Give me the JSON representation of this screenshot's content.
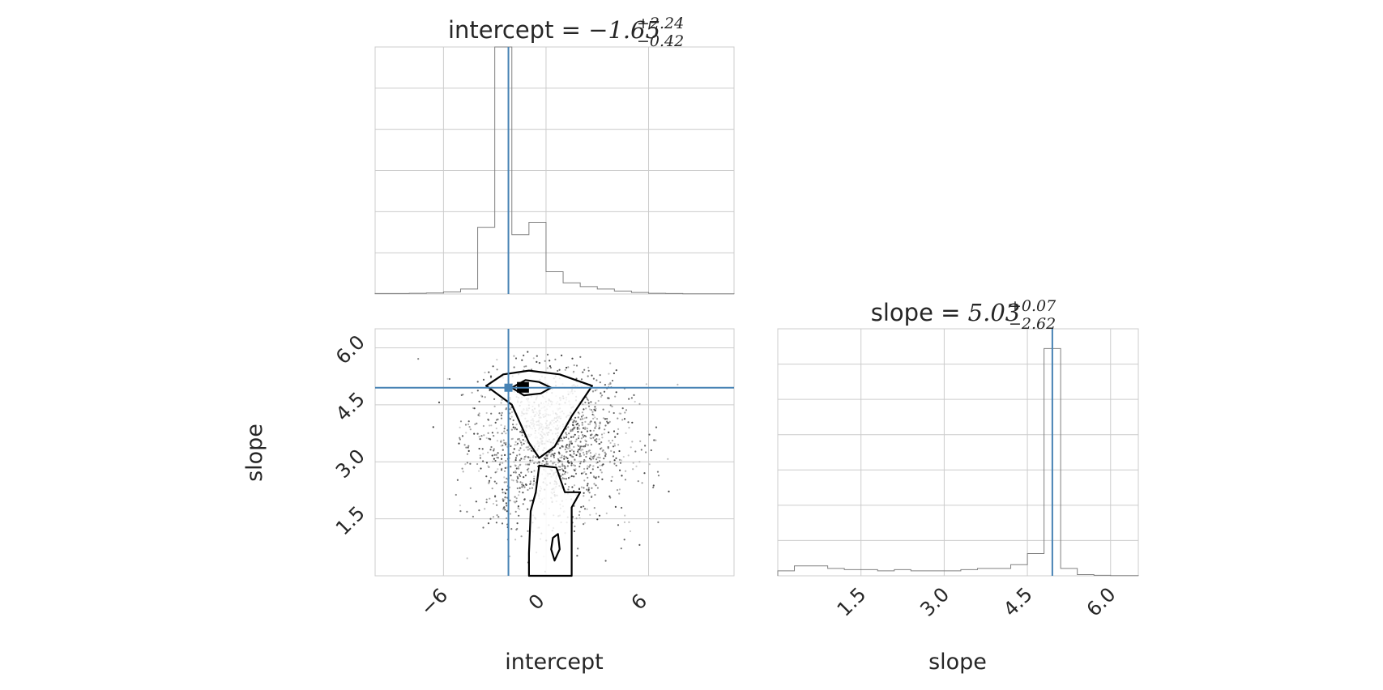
{
  "chart_data": {
    "type": "corner",
    "accent_color": "#4682b4",
    "hist_color": "#808080",
    "grid_color": "#cccccc",
    "grid": true,
    "parameters": [
      "intercept",
      "slope"
    ],
    "truths": {
      "intercept": -2.2,
      "slope": 4.95
    },
    "panels": [
      {
        "id": "hist-intercept",
        "type": "histogram",
        "title": {
          "name": "intercept",
          "eq": " = ",
          "value": "−1.65",
          "upper": "+2.24",
          "lower": "−0.42"
        },
        "xlim": [
          -10,
          11
        ],
        "ylim": [
          0,
          1.0
        ],
        "bins": [
          -10,
          -9,
          -8,
          -7,
          -6,
          -5,
          -4,
          -3,
          -2,
          -1,
          0,
          1,
          2,
          3,
          4,
          5,
          6,
          7,
          8,
          9,
          10,
          11
        ],
        "counts": [
          0.002,
          0.002,
          0.003,
          0.004,
          0.008,
          0.02,
          0.27,
          1.0,
          0.24,
          0.29,
          0.09,
          0.045,
          0.03,
          0.02,
          0.012,
          0.006,
          0.003,
          0.002,
          0.001,
          0.001,
          0.001
        ]
      },
      {
        "id": "hist-slope",
        "type": "histogram",
        "title": {
          "name": "slope",
          "eq": " = ",
          "value": "5.03",
          "upper": "+0.07",
          "lower": "−2.62"
        },
        "xlim": [
          0.0,
          6.5
        ],
        "xticks": [
          "1.5",
          "3.0",
          "4.5",
          "6.0"
        ],
        "xtick_values": [
          1.5,
          3.0,
          4.5,
          6.0
        ],
        "xlabel": "slope",
        "ylim": [
          0,
          1.0
        ],
        "bins": [
          0.0,
          0.3,
          0.6,
          0.9,
          1.2,
          1.5,
          1.8,
          2.1,
          2.4,
          2.7,
          3.0,
          3.3,
          3.6,
          3.9,
          4.2,
          4.5,
          4.8,
          5.1,
          5.4,
          5.7,
          6.0,
          6.3,
          6.5
        ],
        "counts": [
          0.02,
          0.04,
          0.04,
          0.03,
          0.025,
          0.025,
          0.02,
          0.025,
          0.02,
          0.02,
          0.02,
          0.025,
          0.03,
          0.03,
          0.045,
          0.09,
          0.92,
          0.03,
          0.005,
          0.002,
          0.001,
          0.001
        ]
      },
      {
        "id": "scatter-intercept-slope",
        "type": "contour-scatter",
        "xlim": [
          -10,
          11
        ],
        "ylim": [
          0.0,
          6.5
        ],
        "xticks": [
          "−6",
          "0",
          "6"
        ],
        "xtick_values": [
          -6,
          0,
          6
        ],
        "yticks": [
          "1.5",
          "3.0",
          "4.5",
          "6.0"
        ],
        "ytick_values": [
          1.5,
          3.0,
          4.5,
          6.0
        ],
        "xlabel": "intercept",
        "ylabel": "slope",
        "contours": [
          [
            [
              -3.5,
              5.0
            ],
            [
              -2.5,
              5.3
            ],
            [
              -1.0,
              5.4
            ],
            [
              0.8,
              5.3
            ],
            [
              2.7,
              5.0
            ],
            [
              1.5,
              4.2
            ],
            [
              0.5,
              3.4
            ],
            [
              -0.4,
              3.1
            ],
            [
              -1.0,
              3.5
            ],
            [
              -2.0,
              4.5
            ],
            [
              -3.5,
              5.0
            ]
          ],
          [
            [
              -2.0,
              4.95
            ],
            [
              -1.2,
              5.15
            ],
            [
              -0.4,
              5.1
            ],
            [
              0.3,
              4.95
            ],
            [
              -0.3,
              4.8
            ],
            [
              -1.3,
              4.75
            ],
            [
              -2.0,
              4.95
            ]
          ],
          [
            [
              -0.4,
              2.9
            ],
            [
              0.6,
              2.85
            ],
            [
              1.1,
              2.2
            ],
            [
              2.0,
              2.2
            ],
            [
              1.5,
              1.8
            ],
            [
              1.5,
              0.4
            ],
            [
              1.5,
              0.0
            ],
            [
              -1.0,
              0.0
            ],
            [
              -1.0,
              0.6
            ],
            [
              -0.9,
              1.7
            ],
            [
              -0.6,
              2.2
            ],
            [
              -0.4,
              2.9
            ]
          ],
          [
            [
              0.5,
              0.4
            ],
            [
              0.8,
              0.7
            ],
            [
              0.7,
              1.1
            ],
            [
              0.4,
              1.0
            ],
            [
              0.3,
              0.7
            ],
            [
              0.5,
              0.4
            ]
          ]
        ],
        "core": {
          "x": [
            -1.7,
            -1.0
          ],
          "y": [
            4.82,
            5.1
          ]
        }
      }
    ]
  }
}
